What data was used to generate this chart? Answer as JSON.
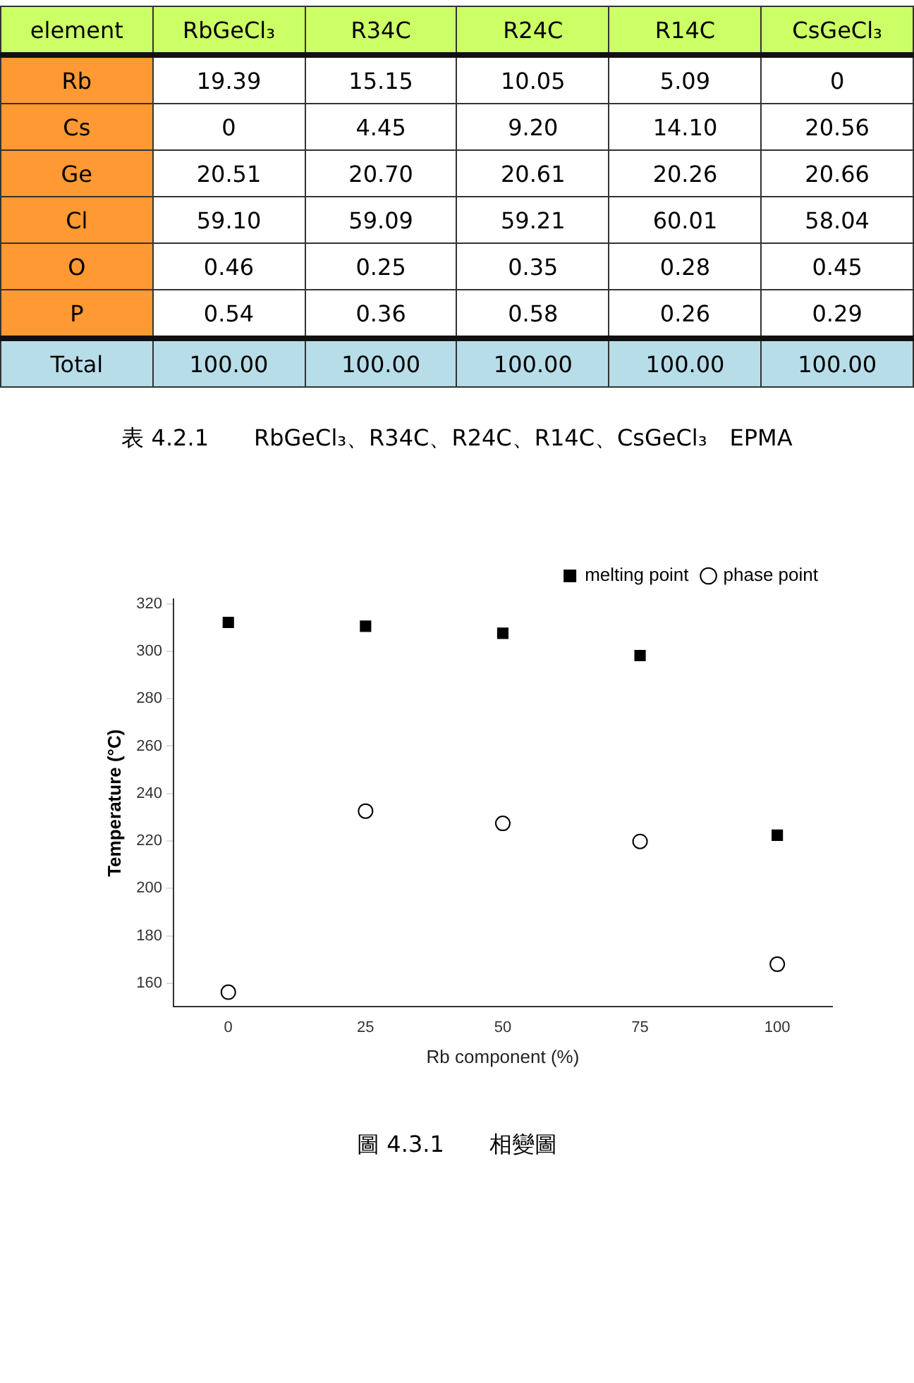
{
  "chart_data": [
    {
      "type": "heatmap",
      "ylabel": "element",
      "categories": [
        "RbGeCl₃",
        "R34C",
        "R24C",
        "R14C",
        "CsGeCl₃"
      ],
      "y_categories": [
        "Rb",
        "Cs",
        "Ge",
        "Cl",
        "O",
        "P",
        "Total"
      ],
      "cells": [
        [
          19.39,
          15.15,
          10.05,
          5.09,
          0
        ],
        [
          0,
          4.45,
          9.2,
          14.1,
          20.56
        ],
        [
          20.51,
          20.7,
          20.61,
          20.26,
          20.66
        ],
        [
          59.1,
          59.09,
          59.21,
          60.01,
          58.04
        ],
        [
          0.46,
          0.25,
          0.35,
          0.28,
          0.45
        ],
        [
          0.54,
          0.36,
          0.58,
          0.26,
          0.29
        ],
        [
          100,
          100,
          100,
          100,
          100
        ]
      ],
      "cell_labels": [
        [
          "19.39",
          "15.15",
          "10.05",
          "5.09",
          "0"
        ],
        [
          "0",
          "4.45",
          "9.20",
          "14.10",
          "20.56"
        ],
        [
          "20.51",
          "20.70",
          "20.61",
          "20.26",
          "20.66"
        ],
        [
          "59.10",
          "59.09",
          "59.21",
          "60.01",
          "58.04"
        ],
        [
          "0.46",
          "0.25",
          "0.35",
          "0.28",
          "0.45"
        ],
        [
          "0.54",
          "0.36",
          "0.58",
          "0.26",
          "0.29"
        ],
        [
          "100.00",
          "100.00",
          "100.00",
          "100.00",
          "100.00"
        ]
      ],
      "annotations": [
        "表 4.2.1　　RbGeCl₃、R34C、R24C、R14C、CsGeCl₃　EPMA"
      ]
    },
    {
      "type": "scatter",
      "xlabel": "Rb component (%)",
      "ylabel": "Temperature (°C)",
      "x": [
        0,
        25,
        50,
        75,
        100
      ],
      "series": [
        {
          "name": "melting point",
          "color": "#000000",
          "marker": "square",
          "values": [
            312.2,
            310.6,
            307.6,
            298.2,
            222.4
          ]
        },
        {
          "name": "phase point",
          "color": "#000000",
          "marker": "circle",
          "values": [
            156.2,
            232.6,
            227.4,
            219.8,
            168
          ]
        }
      ],
      "xlim": [
        -10,
        110
      ],
      "xticks": [
        0,
        25,
        50,
        75,
        100
      ],
      "ylim": [
        150,
        322
      ],
      "yticks": [
        160,
        180,
        200,
        220,
        240,
        260,
        280,
        300,
        320
      ],
      "legend": "top right",
      "grid": false,
      "annotations": [
        "圖 4.3.1　　相變圖"
      ]
    }
  ]
}
